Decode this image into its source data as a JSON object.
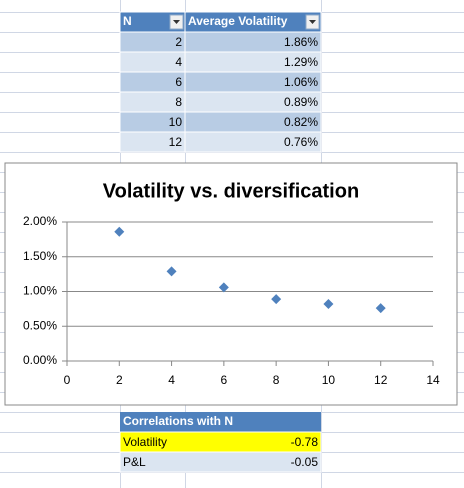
{
  "table": {
    "headers": [
      "N",
      "Average Volatility"
    ],
    "rows": [
      [
        "2",
        "1.86%"
      ],
      [
        "4",
        "1.29%"
      ],
      [
        "6",
        "1.06%"
      ],
      [
        "8",
        "0.89%"
      ],
      [
        "10",
        "0.82%"
      ],
      [
        "12",
        "0.76%"
      ]
    ]
  },
  "chart_data": {
    "type": "scatter",
    "title": "Volatility vs. diversification",
    "x": [
      2,
      4,
      6,
      8,
      10,
      12
    ],
    "values": [
      1.86,
      1.29,
      1.06,
      0.89,
      0.82,
      0.76
    ],
    "color": "#4f81bd",
    "xlim": [
      0,
      14
    ],
    "xticks": [
      0,
      2,
      4,
      6,
      8,
      10,
      12,
      14
    ],
    "ylim": [
      0,
      2
    ],
    "yticks": [
      {
        "value": 0,
        "label": "0.00%"
      },
      {
        "value": 0.5,
        "label": "0.50%"
      },
      {
        "value": 1,
        "label": "1.00%"
      },
      {
        "value": 1.5,
        "label": "1.50%"
      },
      {
        "value": 2,
        "label": "2.00%"
      }
    ],
    "grid": true
  },
  "correlations": {
    "header": "Correlations with N",
    "rows": [
      [
        "Volatility",
        "-0.78"
      ],
      [
        "P&L",
        "-0.05"
      ]
    ]
  }
}
